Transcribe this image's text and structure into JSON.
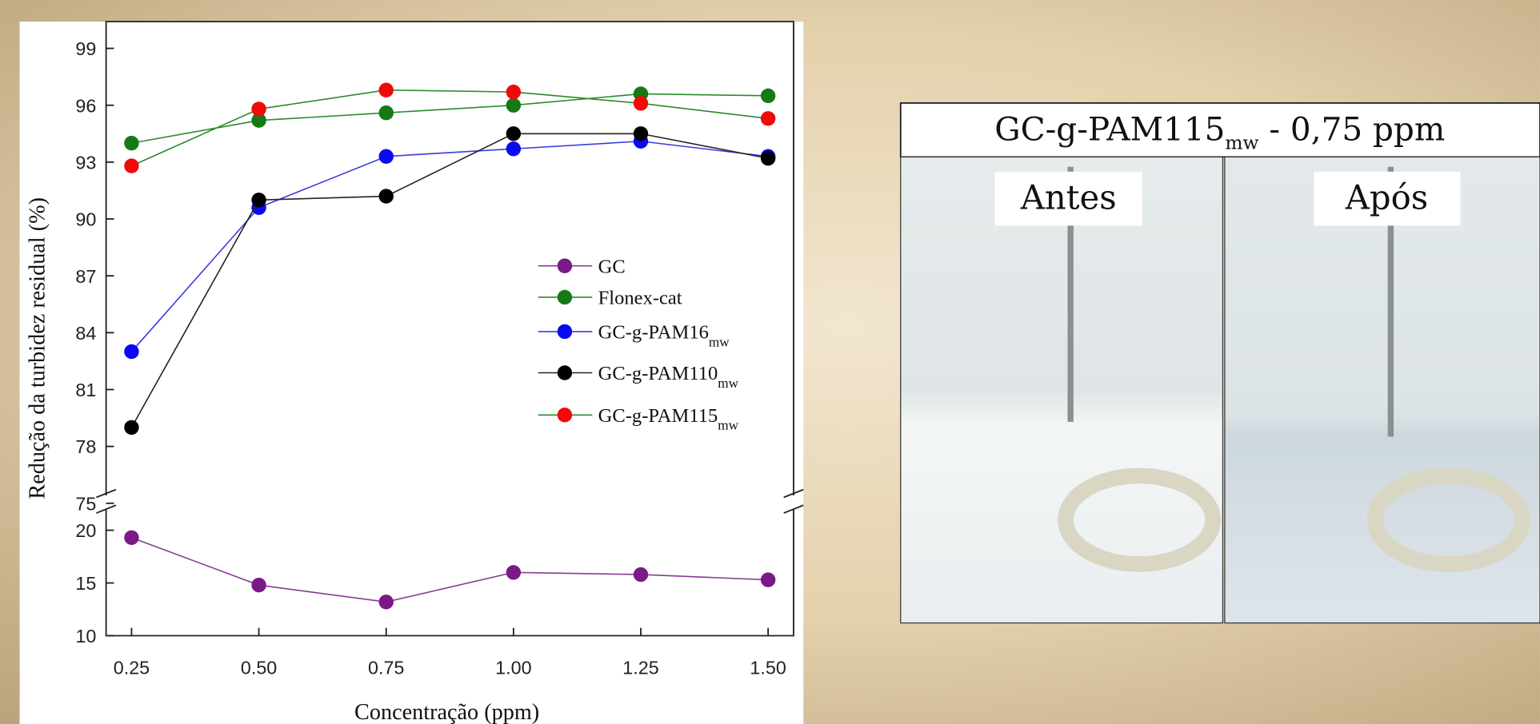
{
  "chart_data": {
    "type": "line",
    "y_label": "Redução da turbidez residual (%)",
    "x_label": "Concentração (ppm)",
    "x": [
      0.25,
      0.5,
      0.75,
      1.0,
      1.25,
      1.5
    ],
    "xlim": [
      0.2,
      1.55
    ],
    "xticks": [
      {
        "value": 0.25,
        "label": "0.25"
      },
      {
        "value": 0.5,
        "label": "0.50"
      },
      {
        "value": 0.75,
        "label": "0.75"
      },
      {
        "value": 1.0,
        "label": "1.00"
      },
      {
        "value": 1.25,
        "label": "1.25"
      },
      {
        "value": 1.5,
        "label": "1.50"
      }
    ],
    "ylim": [
      75,
      100
    ],
    "yticks": [
      75,
      78,
      81,
      84,
      87,
      90,
      93,
      96,
      99
    ],
    "y_lower_lim": [
      10,
      22
    ],
    "y_lower_ticks": [
      10,
      15,
      20
    ],
    "series": [
      {
        "name": "GC",
        "color": "#7a1a86",
        "line_color": "#8a3a96",
        "axis": "lower",
        "values": [
          19.3,
          14.8,
          13.2,
          16.0,
          15.8,
          15.3
        ]
      },
      {
        "name": "Flonex-cat",
        "color": "#157a15",
        "line_color": "#2a8a2a",
        "values": [
          94.0,
          95.2,
          95.6,
          96.0,
          96.6,
          96.5
        ]
      },
      {
        "name": "GC-g-PAM16",
        "name_sub": "mw",
        "color": "#0a0af0",
        "line_color": "#3a3ae0",
        "values": [
          83.0,
          90.6,
          93.3,
          93.7,
          94.1,
          93.3
        ]
      },
      {
        "name": "GC-g-PAM110",
        "name_sub": "mw",
        "color": "#000000",
        "line_color": "#222222",
        "values": [
          79.0,
          91.0,
          91.2,
          94.5,
          94.5,
          93.2
        ]
      },
      {
        "name": "GC-g-PAM115",
        "name_sub": "mw",
        "color": "#f00a0a",
        "line_color": "#2a8a2a",
        "values": [
          92.8,
          95.8,
          96.8,
          96.7,
          96.1,
          95.3
        ]
      }
    ]
  },
  "photo": {
    "title": "GC-g-PAM115",
    "title_sub": "mw",
    "title_suffix": " - 0,75 ppm",
    "left_label": "Antes",
    "right_label": "Após"
  }
}
